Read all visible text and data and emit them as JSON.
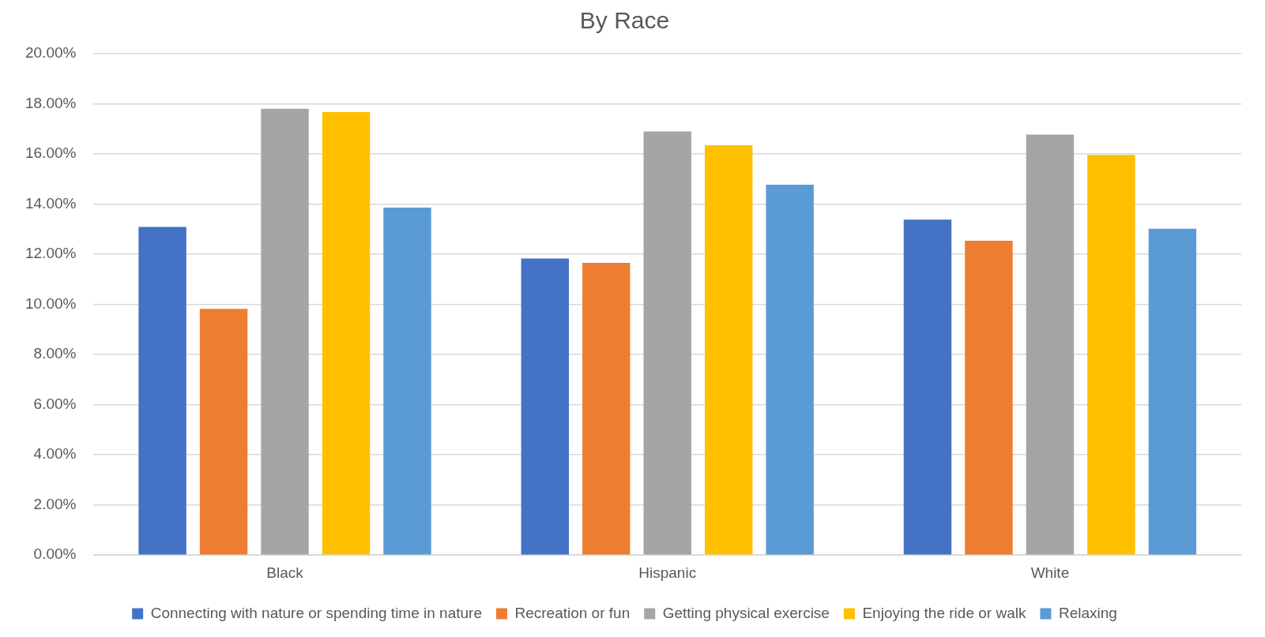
{
  "chart_data": {
    "type": "bar",
    "title": "By Race",
    "categories": [
      "Black",
      "Hispanic",
      "White"
    ],
    "series": [
      {
        "name": "Connecting with nature or spending time in nature",
        "color": "#4472c4",
        "values": [
          13.09,
          11.83,
          13.38
        ]
      },
      {
        "name": "Recreation or fun",
        "color": "#ed7d31",
        "values": [
          9.82,
          11.66,
          12.54
        ]
      },
      {
        "name": "Getting physical exercise",
        "color": "#a5a5a5",
        "values": [
          17.8,
          16.9,
          16.77
        ]
      },
      {
        "name": "Enjoying the ride or walk",
        "color": "#ffc000",
        "values": [
          17.67,
          16.35,
          15.96
        ]
      },
      {
        "name": "Relaxing",
        "color": "#5b9bd5",
        "values": [
          13.86,
          14.77,
          13.02
        ]
      }
    ],
    "ylim": [
      0,
      20
    ],
    "yticks": [
      {
        "value": 0,
        "label": "0.00%"
      },
      {
        "value": 2,
        "label": "2.00%"
      },
      {
        "value": 4,
        "label": "4.00%"
      },
      {
        "value": 6,
        "label": "6.00%"
      },
      {
        "value": 8,
        "label": "8.00%"
      },
      {
        "value": 10,
        "label": "10.00%"
      },
      {
        "value": 12,
        "label": "12.00%"
      },
      {
        "value": 14,
        "label": "14.00%"
      },
      {
        "value": 16,
        "label": "16.00%"
      },
      {
        "value": 18,
        "label": "18.00%"
      },
      {
        "value": 20,
        "label": "20.00%"
      }
    ],
    "grid": "y",
    "legend": "bottom"
  }
}
